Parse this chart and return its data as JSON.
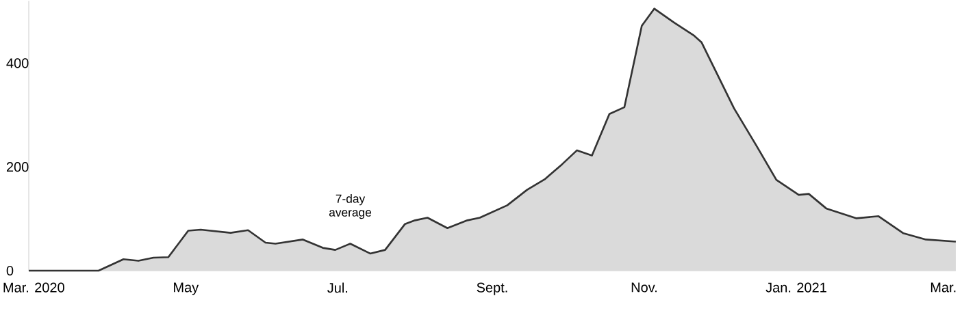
{
  "chart_data": {
    "type": "area",
    "x": [
      "2020-02-28",
      "2020-03-27",
      "2020-04-06",
      "2020-04-12",
      "2020-04-18",
      "2020-04-24",
      "2020-05-02",
      "2020-05-07",
      "2020-05-19",
      "2020-05-26",
      "2020-06-02",
      "2020-06-06",
      "2020-06-17",
      "2020-06-25",
      "2020-06-30",
      "2020-07-06",
      "2020-07-14",
      "2020-07-20",
      "2020-07-28",
      "2020-08-01",
      "2020-08-06",
      "2020-08-14",
      "2020-08-22",
      "2020-08-27",
      "2020-09-07",
      "2020-09-15",
      "2020-09-22",
      "2020-09-29",
      "2020-10-05",
      "2020-10-11",
      "2020-10-18",
      "2020-10-24",
      "2020-10-31",
      "2020-11-05",
      "2020-11-13",
      "2020-11-21",
      "2020-11-24",
      "2020-12-07",
      "2020-12-16",
      "2020-12-24",
      "2021-01-02",
      "2021-01-06",
      "2021-01-13",
      "2021-01-25",
      "2021-02-03",
      "2021-02-13",
      "2021-02-22",
      "2021-03-06"
    ],
    "series": [
      {
        "name": "7-day average",
        "color": "#333333",
        "values": [
          0,
          0,
          22,
          19,
          25,
          26,
          77,
          79,
          73,
          78,
          54,
          52,
          60,
          44,
          40,
          52,
          33,
          40,
          90,
          97,
          102,
          82,
          97,
          102,
          126,
          156,
          176,
          205,
          232,
          222,
          302,
          315,
          472,
          505,
          478,
          453,
          440,
          313,
          241,
          175,
          146,
          148,
          120,
          101,
          105,
          72,
          60,
          56
        ]
      }
    ],
    "xlim": [
      "2020-02-28",
      "2021-03-06"
    ],
    "xticks": [
      {
        "value": "2020-03-01",
        "label": "Mar. 2020"
      },
      {
        "value": "2020-05-01",
        "label": "May"
      },
      {
        "value": "2020-07-01",
        "label": "Jul."
      },
      {
        "value": "2020-09-01",
        "label": "Sept."
      },
      {
        "value": "2020-11-01",
        "label": "Nov."
      },
      {
        "value": "2021-01-01",
        "label": "Jan. 2021"
      },
      {
        "value": "2021-03-01",
        "label": "Mar."
      }
    ],
    "ylim": [
      0,
      520
    ],
    "yticks": [
      0,
      200,
      400
    ]
  }
}
